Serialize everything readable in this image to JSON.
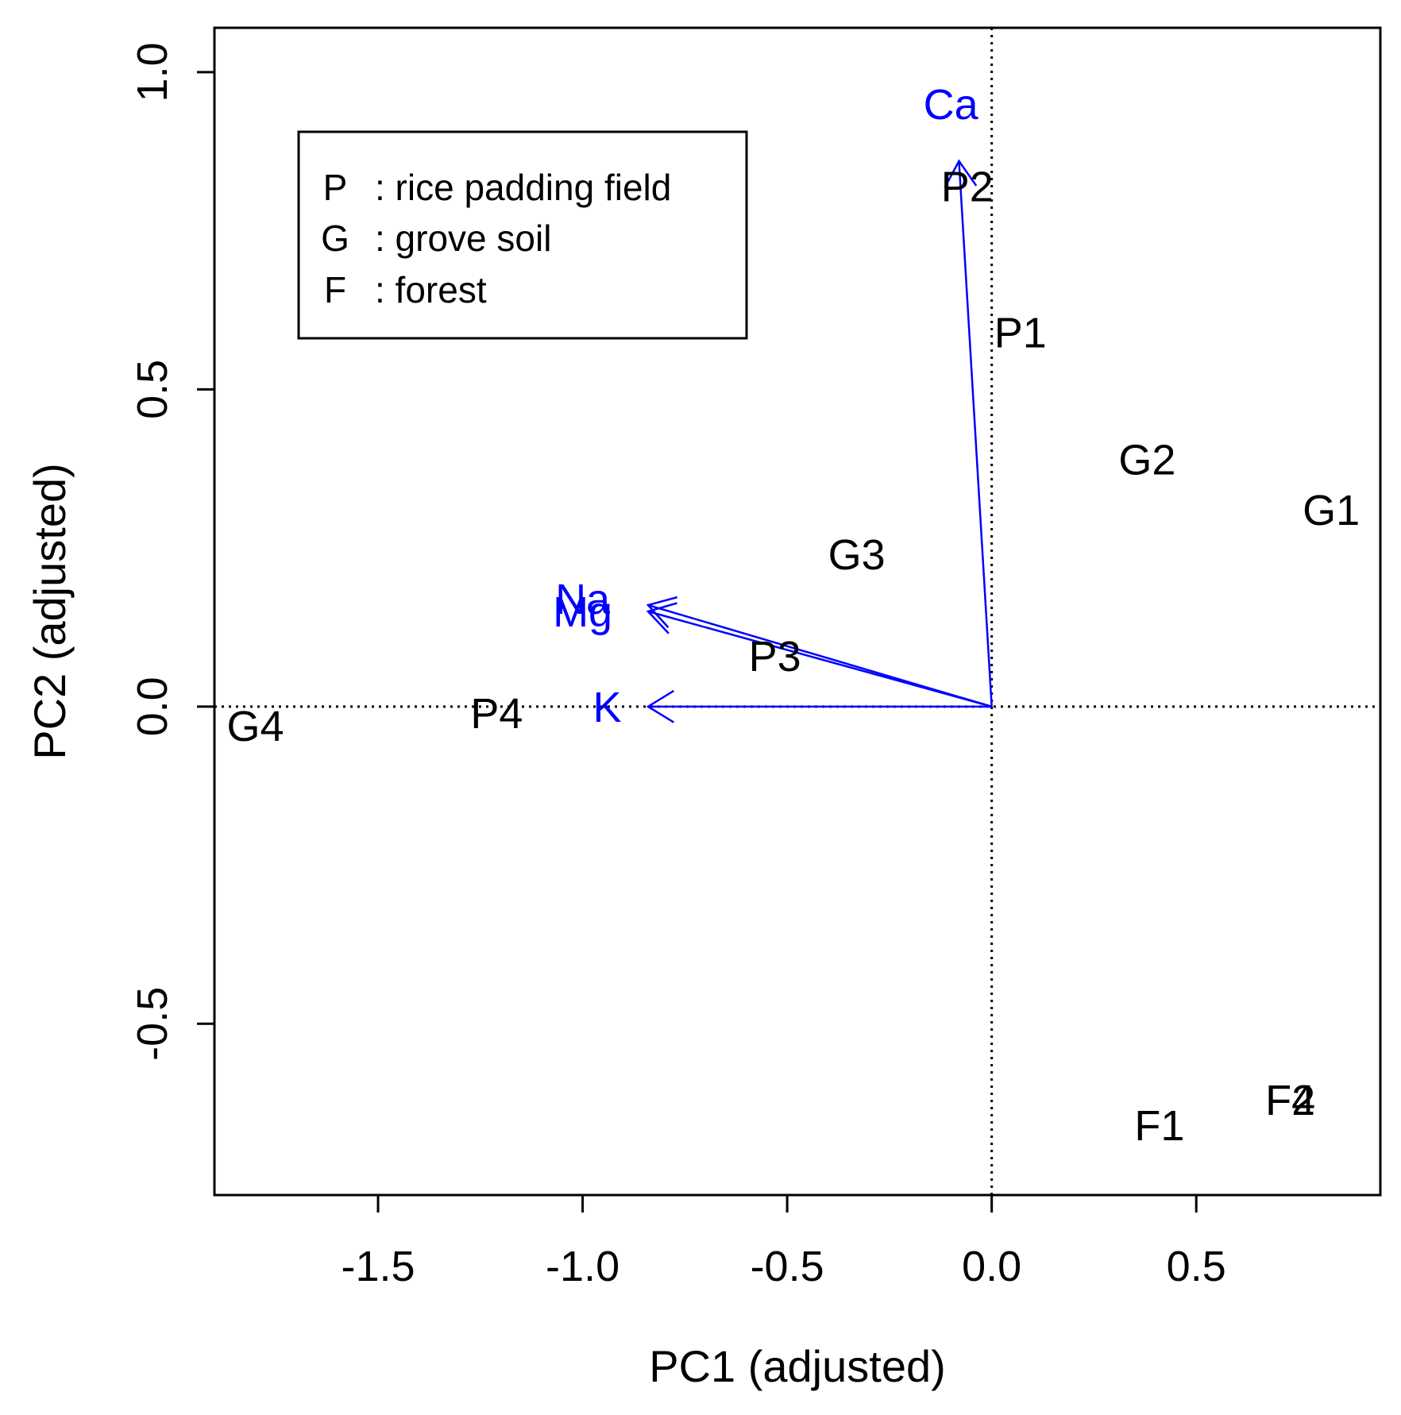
{
  "chart_data": {
    "type": "scatter",
    "subtype": "biplot",
    "xlabel": "PC1 (adjusted)",
    "ylabel": "PC2 (adjusted)",
    "xlim": [
      -1.9,
      0.95
    ],
    "ylim": [
      -0.77,
      1.07
    ],
    "xticks": [
      -1.5,
      -1.0,
      -0.5,
      0.0,
      0.5
    ],
    "xtick_labels": [
      "-1.5",
      "-1.0",
      "-0.5",
      "0.0",
      "0.5"
    ],
    "yticks": [
      -0.5,
      0.0,
      0.5,
      1.0
    ],
    "ytick_labels": [
      "-0.5",
      "0.0",
      "0.5",
      "1.0"
    ],
    "reference_lines": {
      "x": 0.0,
      "y": 0.0,
      "style": "dotted"
    },
    "points": [
      {
        "label": "P2",
        "x": -0.06,
        "y": 0.82
      },
      {
        "label": "P1",
        "x": 0.07,
        "y": 0.59
      },
      {
        "label": "G2",
        "x": 0.38,
        "y": 0.39
      },
      {
        "label": "G1",
        "x": 0.83,
        "y": 0.31
      },
      {
        "label": "G3",
        "x": -0.33,
        "y": 0.24
      },
      {
        "label": "P3",
        "x": -0.53,
        "y": 0.08
      },
      {
        "label": "P4",
        "x": -1.21,
        "y": -0.01
      },
      {
        "label": "G4",
        "x": -1.8,
        "y": -0.03
      },
      {
        "label": "F1",
        "x": 0.41,
        "y": -0.66
      },
      {
        "label": "F4",
        "x": 0.73,
        "y": -0.62
      },
      {
        "label": "F2",
        "x": 0.73,
        "y": -0.62
      }
    ],
    "loadings": [
      {
        "label": "Ca",
        "x": -0.08,
        "y": 0.86,
        "label_x": -0.1,
        "label_y": 0.95
      },
      {
        "label": "Na",
        "x": -0.84,
        "y": 0.16,
        "label_x": -1.0,
        "label_y": 0.17
      },
      {
        "label": "Mg",
        "x": -0.84,
        "y": 0.15,
        "label_x": -1.0,
        "label_y": 0.15
      },
      {
        "label": "K",
        "x": -0.84,
        "y": 0.0,
        "label_x": -0.94,
        "label_y": 0.0
      }
    ],
    "loading_color": "#0000ff",
    "legend": {
      "position": "top-left",
      "entries": [
        {
          "key": "P",
          "text": ": rice padding field"
        },
        {
          "key": "G",
          "text": ": grove soil"
        },
        {
          "key": "F",
          "text": ": forest"
        }
      ]
    }
  }
}
